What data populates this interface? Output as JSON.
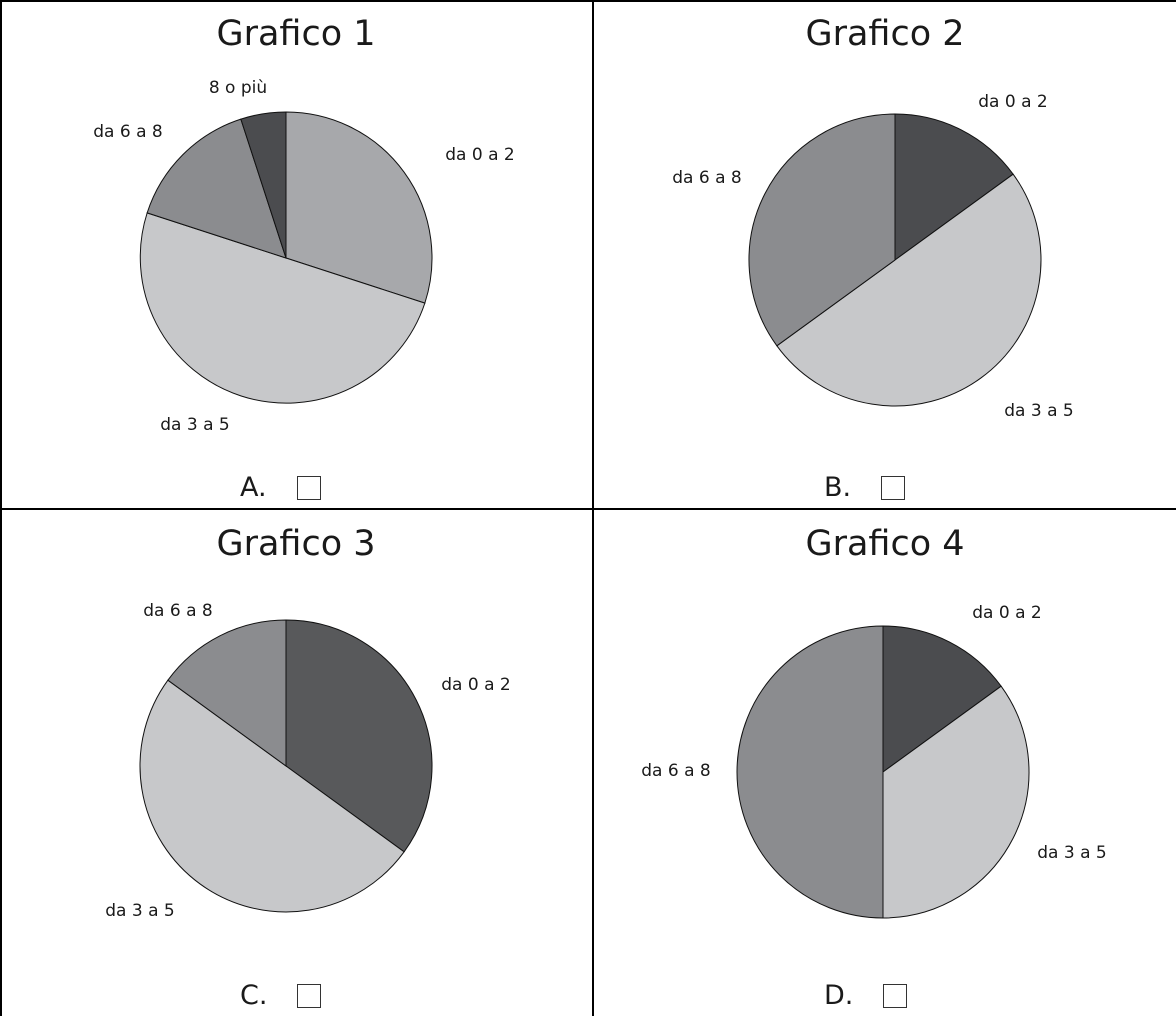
{
  "chart_data": [
    {
      "type": "pie",
      "title": "Grafico 1",
      "option_letter": "A.",
      "labels": [
        "da 0 a 2",
        "da 3 a 5",
        "da 6 a 8",
        "8 o più"
      ],
      "values": [
        30,
        50,
        15,
        5
      ],
      "colors": [
        "#a7a8ab",
        "#c7c8ca",
        "#8b8c8f",
        "#4b4c4f"
      ]
    },
    {
      "type": "pie",
      "title": "Grafico 2",
      "option_letter": "B.",
      "labels": [
        "da 0 a 2",
        "da 3 a 5",
        "da 6 a 8"
      ],
      "values": [
        15,
        50,
        35
      ],
      "colors": [
        "#4b4c4f",
        "#c7c8ca",
        "#8b8c8f"
      ]
    },
    {
      "type": "pie",
      "title": "Grafico 3",
      "option_letter": "C.",
      "labels": [
        "da 0 a 2",
        "da 3 a 5",
        "da 6 a 8"
      ],
      "values": [
        35,
        50,
        15
      ],
      "colors": [
        "#58595b",
        "#c7c8ca",
        "#8b8c8f"
      ]
    },
    {
      "type": "pie",
      "title": "Grafico 4",
      "option_letter": "D.",
      "labels": [
        "da 0 a 2",
        "da 3 a 5",
        "da 6 a 8"
      ],
      "values": [
        15,
        35,
        50
      ],
      "colors": [
        "#4b4c4f",
        "#c7c8ca",
        "#8b8c8f"
      ]
    }
  ]
}
